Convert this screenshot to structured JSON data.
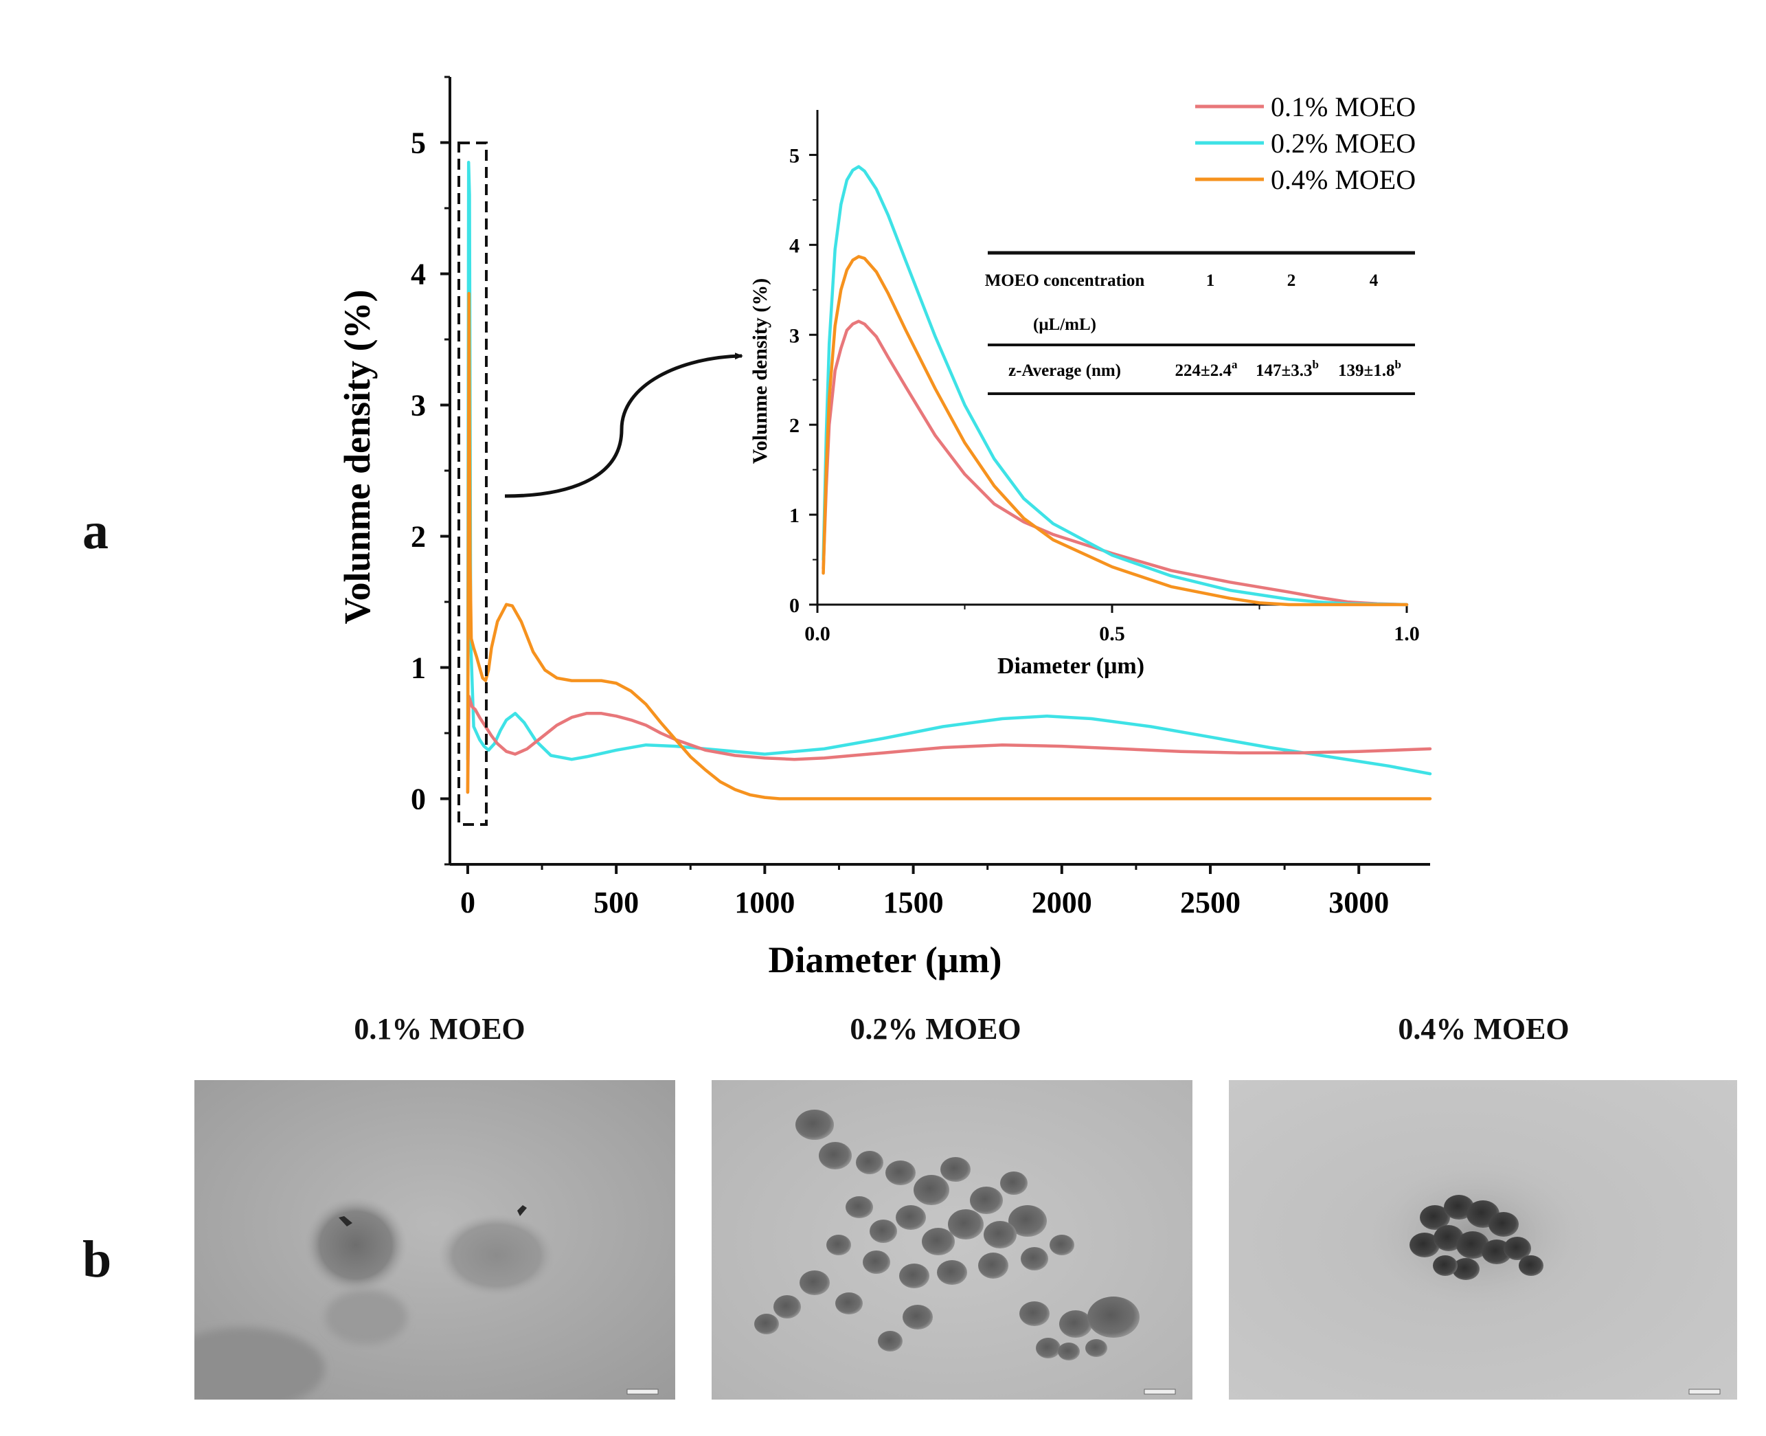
{
  "panel_a": {
    "letter": "a",
    "main_chart": {
      "type": "line",
      "xlabel": "Diameter (μm)",
      "ylabel": "Volunme density (%)",
      "xlim": [
        -60,
        3240
      ],
      "ylim": [
        -0.5,
        5.5
      ],
      "xticks": [
        0,
        500,
        1000,
        1500,
        2000,
        2500,
        3000
      ],
      "yticks": [
        0,
        1,
        2,
        3,
        4,
        5
      ],
      "series": [
        {
          "name": "0.1% MOEO",
          "color": "#e8777a",
          "x": [
            0,
            4,
            8,
            15,
            25,
            40,
            60,
            80,
            100,
            130,
            160,
            200,
            250,
            300,
            350,
            400,
            450,
            500,
            550,
            600,
            650,
            700,
            800,
            900,
            1000,
            1100,
            1200,
            1400,
            1600,
            1800,
            2000,
            2200,
            2400,
            2600,
            2800,
            3000,
            3240
          ],
          "y": [
            0.05,
            0.78,
            0.75,
            0.7,
            0.68,
            0.62,
            0.55,
            0.48,
            0.42,
            0.36,
            0.34,
            0.38,
            0.47,
            0.56,
            0.62,
            0.65,
            0.65,
            0.63,
            0.6,
            0.56,
            0.5,
            0.45,
            0.37,
            0.33,
            0.31,
            0.3,
            0.31,
            0.35,
            0.39,
            0.41,
            0.4,
            0.38,
            0.36,
            0.35,
            0.35,
            0.36,
            0.38
          ]
        },
        {
          "name": "0.2% MOEO",
          "color": "#3ee2e6",
          "x": [
            0,
            3,
            6,
            10,
            20,
            30,
            40,
            55,
            70,
            90,
            110,
            130,
            160,
            190,
            230,
            280,
            350,
            400,
            500,
            600,
            700,
            800,
            900,
            1000,
            1200,
            1400,
            1600,
            1800,
            1950,
            2100,
            2300,
            2500,
            2700,
            2900,
            3100,
            3240
          ],
          "y": [
            0.3,
            4.85,
            4.6,
            1.2,
            0.55,
            0.5,
            0.45,
            0.4,
            0.37,
            0.42,
            0.52,
            0.6,
            0.65,
            0.58,
            0.44,
            0.33,
            0.3,
            0.32,
            0.37,
            0.41,
            0.4,
            0.38,
            0.36,
            0.34,
            0.38,
            0.46,
            0.55,
            0.61,
            0.63,
            0.61,
            0.55,
            0.47,
            0.39,
            0.32,
            0.25,
            0.19
          ]
        },
        {
          "name": "0.4% MOEO",
          "color": "#f6921e",
          "x": [
            0,
            4,
            8,
            12,
            20,
            30,
            40,
            50,
            60,
            70,
            80,
            100,
            130,
            150,
            180,
            220,
            260,
            300,
            350,
            400,
            450,
            500,
            550,
            600,
            650,
            700,
            750,
            800,
            850,
            900,
            950,
            1000,
            1050,
            1200,
            1600,
            2000,
            2400,
            2800,
            3240
          ],
          "y": [
            0.05,
            3.85,
            1.8,
            1.22,
            1.15,
            1.08,
            1.0,
            0.92,
            0.9,
            0.98,
            1.15,
            1.35,
            1.48,
            1.47,
            1.35,
            1.12,
            0.98,
            0.92,
            0.9,
            0.9,
            0.9,
            0.88,
            0.82,
            0.72,
            0.58,
            0.45,
            0.32,
            0.22,
            0.13,
            0.07,
            0.03,
            0.01,
            0.0,
            0.0,
            0.0,
            0.0,
            0.0,
            0.0,
            0.0
          ]
        }
      ]
    },
    "inset_chart": {
      "type": "line",
      "xlabel": "Diameter (μm)",
      "ylabel": "Volunme density (%)",
      "xlim": [
        0,
        1.0
      ],
      "ylim": [
        0,
        5.5
      ],
      "xtick_labels": [
        "0.0",
        "0.5",
        "1.0"
      ],
      "yticks": [
        0,
        1,
        2,
        3,
        4,
        5
      ],
      "series": [
        {
          "name": "0.1% MOEO",
          "color": "#e8777a",
          "x": [
            0.01,
            0.015,
            0.02,
            0.03,
            0.04,
            0.05,
            0.06,
            0.07,
            0.08,
            0.1,
            0.12,
            0.15,
            0.2,
            0.25,
            0.3,
            0.35,
            0.4,
            0.5,
            0.6,
            0.7,
            0.8,
            0.85,
            0.9,
            0.95,
            1.0
          ],
          "y": [
            0.4,
            1.3,
            2.0,
            2.6,
            2.85,
            3.05,
            3.12,
            3.15,
            3.12,
            2.98,
            2.75,
            2.42,
            1.88,
            1.45,
            1.12,
            0.92,
            0.78,
            0.57,
            0.38,
            0.25,
            0.14,
            0.08,
            0.03,
            0.01,
            0.0
          ]
        },
        {
          "name": "0.2% MOEO",
          "color": "#3ee2e6",
          "x": [
            0.01,
            0.015,
            0.02,
            0.03,
            0.04,
            0.05,
            0.06,
            0.07,
            0.08,
            0.1,
            0.12,
            0.15,
            0.2,
            0.25,
            0.3,
            0.35,
            0.4,
            0.5,
            0.6,
            0.7,
            0.8,
            0.85,
            0.9,
            1.0
          ],
          "y": [
            0.5,
            1.9,
            2.9,
            3.95,
            4.45,
            4.72,
            4.83,
            4.87,
            4.82,
            4.62,
            4.33,
            3.82,
            2.98,
            2.22,
            1.62,
            1.18,
            0.9,
            0.55,
            0.32,
            0.16,
            0.06,
            0.03,
            0.01,
            0.0
          ]
        },
        {
          "name": "0.4% MOEO",
          "color": "#f6921e",
          "x": [
            0.01,
            0.015,
            0.02,
            0.03,
            0.04,
            0.05,
            0.06,
            0.07,
            0.08,
            0.1,
            0.12,
            0.15,
            0.2,
            0.25,
            0.3,
            0.35,
            0.4,
            0.5,
            0.6,
            0.7,
            0.75,
            0.8,
            0.9,
            1.0
          ],
          "y": [
            0.35,
            1.5,
            2.3,
            3.1,
            3.5,
            3.72,
            3.83,
            3.87,
            3.85,
            3.7,
            3.46,
            3.05,
            2.4,
            1.8,
            1.32,
            0.96,
            0.72,
            0.42,
            0.2,
            0.07,
            0.02,
            0.0,
            0.0,
            0.0
          ]
        }
      ]
    },
    "inset_table": {
      "header": [
        "MOEO concentration",
        "1",
        "2",
        "4"
      ],
      "header_sub": "(μL/mL)",
      "row_label": "z-Average (nm)",
      "row_values": [
        {
          "value": "224±2.4",
          "sup": "a"
        },
        {
          "value": "147±3.3",
          "sup": "b"
        },
        {
          "value": "139±1.8",
          "sup": "b"
        }
      ]
    },
    "legend": {
      "position": "top-right",
      "entries": [
        "0.1% MOEO",
        "0.2% MOEO",
        "0.4% MOEO"
      ]
    }
  },
  "panel_b": {
    "letter": "b",
    "images": [
      {
        "title": "0.1% MOEO",
        "kind": "tem-micrograph"
      },
      {
        "title": "0.2% MOEO",
        "kind": "tem-micrograph"
      },
      {
        "title": "0.4% MOEO",
        "kind": "tem-micrograph"
      }
    ]
  }
}
